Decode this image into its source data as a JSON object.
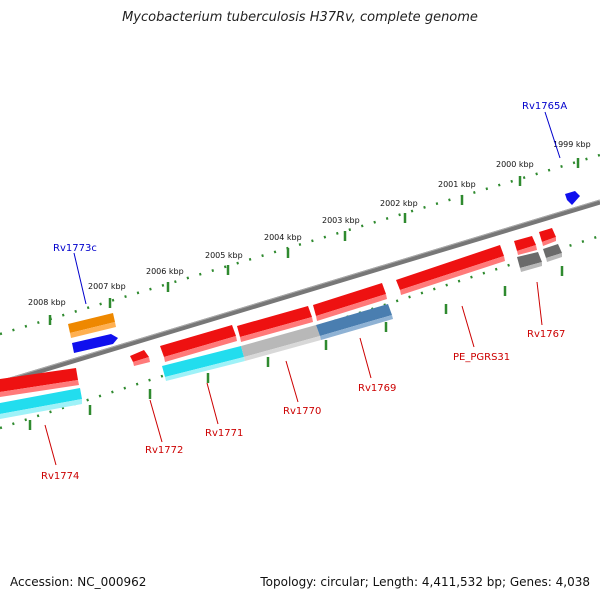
{
  "title": "Mycobacterium tuberculosis H37Rv, complete genome",
  "footer": {
    "accession": "Accession: NC_000962",
    "summary": "Topology: circular; Length: 4,411,532 bp; Genes: 4,038"
  },
  "colors": {
    "backbone": "#7f7f7f",
    "tick": "#2f8a2f",
    "label_top": "#0000cc",
    "label_bottom": "#cc0000",
    "red_gene": "#ee1111",
    "blue_gene": "#1010ee",
    "cyan_gene": "#22ddee",
    "gray_gene": "#b8b8b8",
    "steel_gene": "#4a7eb0",
    "orange_gene": "#ee8800",
    "dark_gray_gene": "#6b6b6b"
  },
  "scale_labels": [
    "2008 kbp",
    "2007 kbp",
    "2006 kbp",
    "2005 kbp",
    "2004 kbp",
    "2003 kbp",
    "2002 kbp",
    "2001 kbp",
    "2000 kbp",
    "1999 kbp"
  ],
  "gene_labels_top": [
    "Rv1773c",
    "Rv1765A"
  ],
  "gene_labels_bottom": [
    "Rv1774",
    "Rv1772",
    "Rv1771",
    "Rv1770",
    "Rv1769",
    "PE_PGRS31",
    "Rv1767"
  ]
}
